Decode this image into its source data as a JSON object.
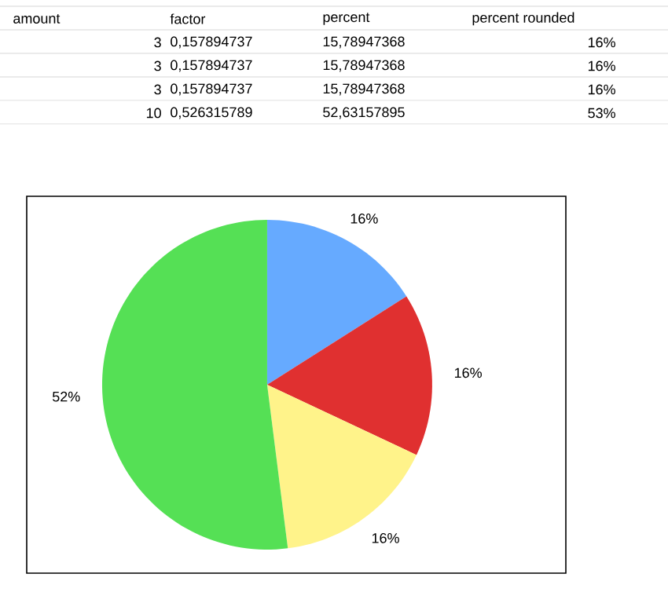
{
  "chart_data": {
    "type": "pie",
    "categories": [
      null,
      null,
      null,
      null
    ],
    "values": [
      16,
      16,
      16,
      52
    ],
    "colors": [
      "#66aaff",
      "#e03030",
      "#fff38a",
      "#55e055"
    ],
    "value_labels": [
      "16%",
      "16%",
      "16%",
      "52%"
    ],
    "annotations": [
      "amount",
      "factor",
      "percent",
      "percent rounded",
      "3",
      "0,157894737",
      "15,78947368",
      "16%",
      "3",
      "0,157894737",
      "15,78947368",
      "16%",
      "3",
      "0,157894737",
      "15,78947368",
      "16%",
      "10",
      "0,526315789",
      "52,63157895",
      "53%"
    ]
  }
}
